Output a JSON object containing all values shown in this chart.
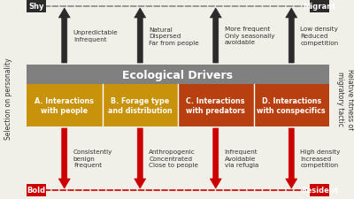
{
  "bg_color": "#f0efe8",
  "shy_label": "Shy",
  "bold_label": "Bold",
  "migrant_label": "Migrant",
  "resident_label": "Resident",
  "left_axis_label": "Selection on personality",
  "right_axis_label": "Relative fitness of\nmigratory tactic",
  "eco_drivers_label": "Ecological Drivers",
  "eco_header_color": "#808080",
  "box_colors": [
    "#c8920a",
    "#c8920a",
    "#b84010",
    "#b84010"
  ],
  "box_labels": [
    "A. Interactions\nwith people",
    "B. Forage type\nand distribution",
    "C. Interactions\nwith predators",
    "D. Interactions\nwith conspecifics"
  ],
  "top_texts": [
    "Unpredictable\nInfrequent",
    "Natural\nDispersed\nFar from people",
    "More frequent\nOnly seasonally\navoidable",
    "Low density\nReduced\ncompetition"
  ],
  "bottom_texts": [
    "Consistently\nbenign\nFrequent",
    "Anthropogenic\nConcentrated\nClose to people",
    "Infrequent\nAvoidable\nvia refugia",
    "High density\nIncreased\ncompetition"
  ],
  "arrow_up_color": "#2b2b2b",
  "arrow_down_color": "#cc0000",
  "dashed_top_color": "#888888",
  "dashed_bot_color": "#cc0000",
  "shy_box_color": "#2b2b2b",
  "bold_box_color": "#cc0000",
  "migrant_box_color": "#2b2b2b",
  "resident_box_color": "#cc0000",
  "text_color": "#333333",
  "white": "#ffffff"
}
